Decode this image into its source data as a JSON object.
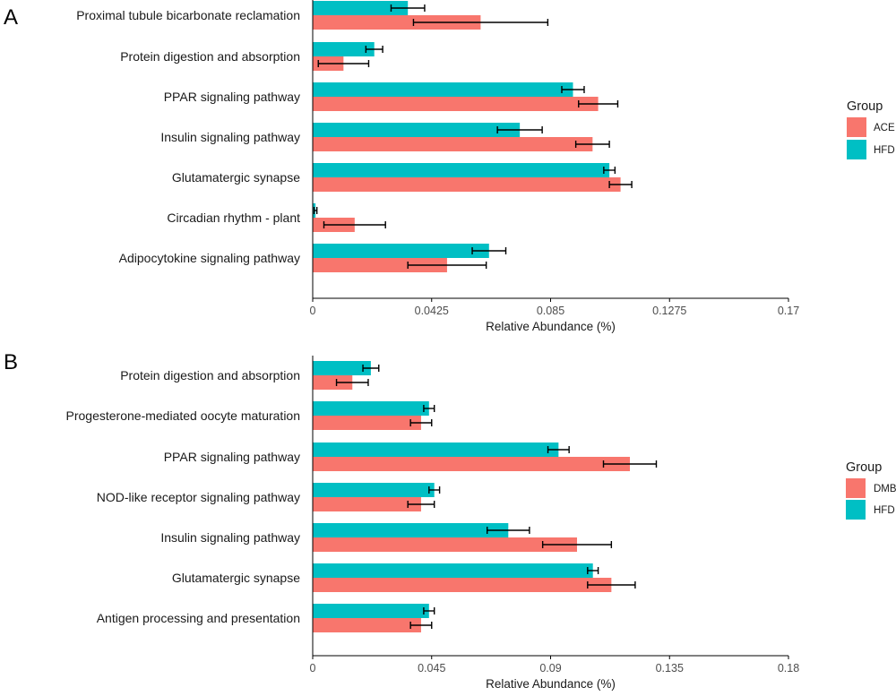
{
  "colors": {
    "red": "#F8766D",
    "teal": "#00BFC4",
    "axis": "#000000",
    "errorbar": "#000000"
  },
  "chart_data": [
    {
      "panel": "A",
      "type": "bar",
      "orientation": "horizontal",
      "xlabel": "Relative Abundance (%)",
      "xlim": [
        0,
        0.17
      ],
      "xticks": [
        "0",
        "0.0425",
        "0.085",
        "0.1275",
        "0.17"
      ],
      "grid": false,
      "legend": {
        "title": "Group",
        "position": "right",
        "entries": [
          "ACE",
          "HFD"
        ]
      },
      "categories": [
        "Proximal tubule bicarbonate reclamation",
        "Protein digestion and absorption",
        "PPAR signaling pathway",
        "Insulin signaling pathway",
        "Glutamatergic synapse",
        "Circadian rhythm - plant",
        "Adipocytokine signaling pathway"
      ],
      "series": [
        {
          "name": "HFD",
          "color": "#00BFC4",
          "values": [
            0.034,
            0.022,
            0.093,
            0.074,
            0.106,
            0.001,
            0.063
          ],
          "errors": [
            0.006,
            0.003,
            0.004,
            0.008,
            0.002,
            0.0005,
            0.006
          ]
        },
        {
          "name": "ACE",
          "color": "#F8766D",
          "values": [
            0.06,
            0.011,
            0.102,
            0.1,
            0.11,
            0.015,
            0.048
          ],
          "errors": [
            0.024,
            0.009,
            0.007,
            0.006,
            0.004,
            0.011,
            0.014
          ]
        }
      ]
    },
    {
      "panel": "B",
      "type": "bar",
      "orientation": "horizontal",
      "xlabel": "Relative Abundance (%)",
      "xlim": [
        0,
        0.18
      ],
      "xticks": [
        "0",
        "0.045",
        "0.09",
        "0.135",
        "0.18"
      ],
      "grid": false,
      "legend": {
        "title": "Group",
        "position": "right",
        "entries": [
          "DMB",
          "HFD"
        ]
      },
      "categories": [
        "Protein digestion and absorption",
        "Progesterone-mediated oocyte maturation",
        "PPAR signaling pathway",
        "NOD-like receptor signaling pathway",
        "Insulin signaling pathway",
        "Glutamatergic synapse",
        "Antigen processing and presentation"
      ],
      "series": [
        {
          "name": "HFD",
          "color": "#00BFC4",
          "values": [
            0.022,
            0.044,
            0.093,
            0.046,
            0.074,
            0.106,
            0.044
          ],
          "errors": [
            0.003,
            0.002,
            0.004,
            0.002,
            0.008,
            0.002,
            0.002
          ]
        },
        {
          "name": "DMB",
          "color": "#F8766D",
          "values": [
            0.015,
            0.041,
            0.12,
            0.041,
            0.1,
            0.113,
            0.041
          ],
          "errors": [
            0.006,
            0.004,
            0.01,
            0.005,
            0.013,
            0.009,
            0.004
          ]
        }
      ]
    }
  ]
}
